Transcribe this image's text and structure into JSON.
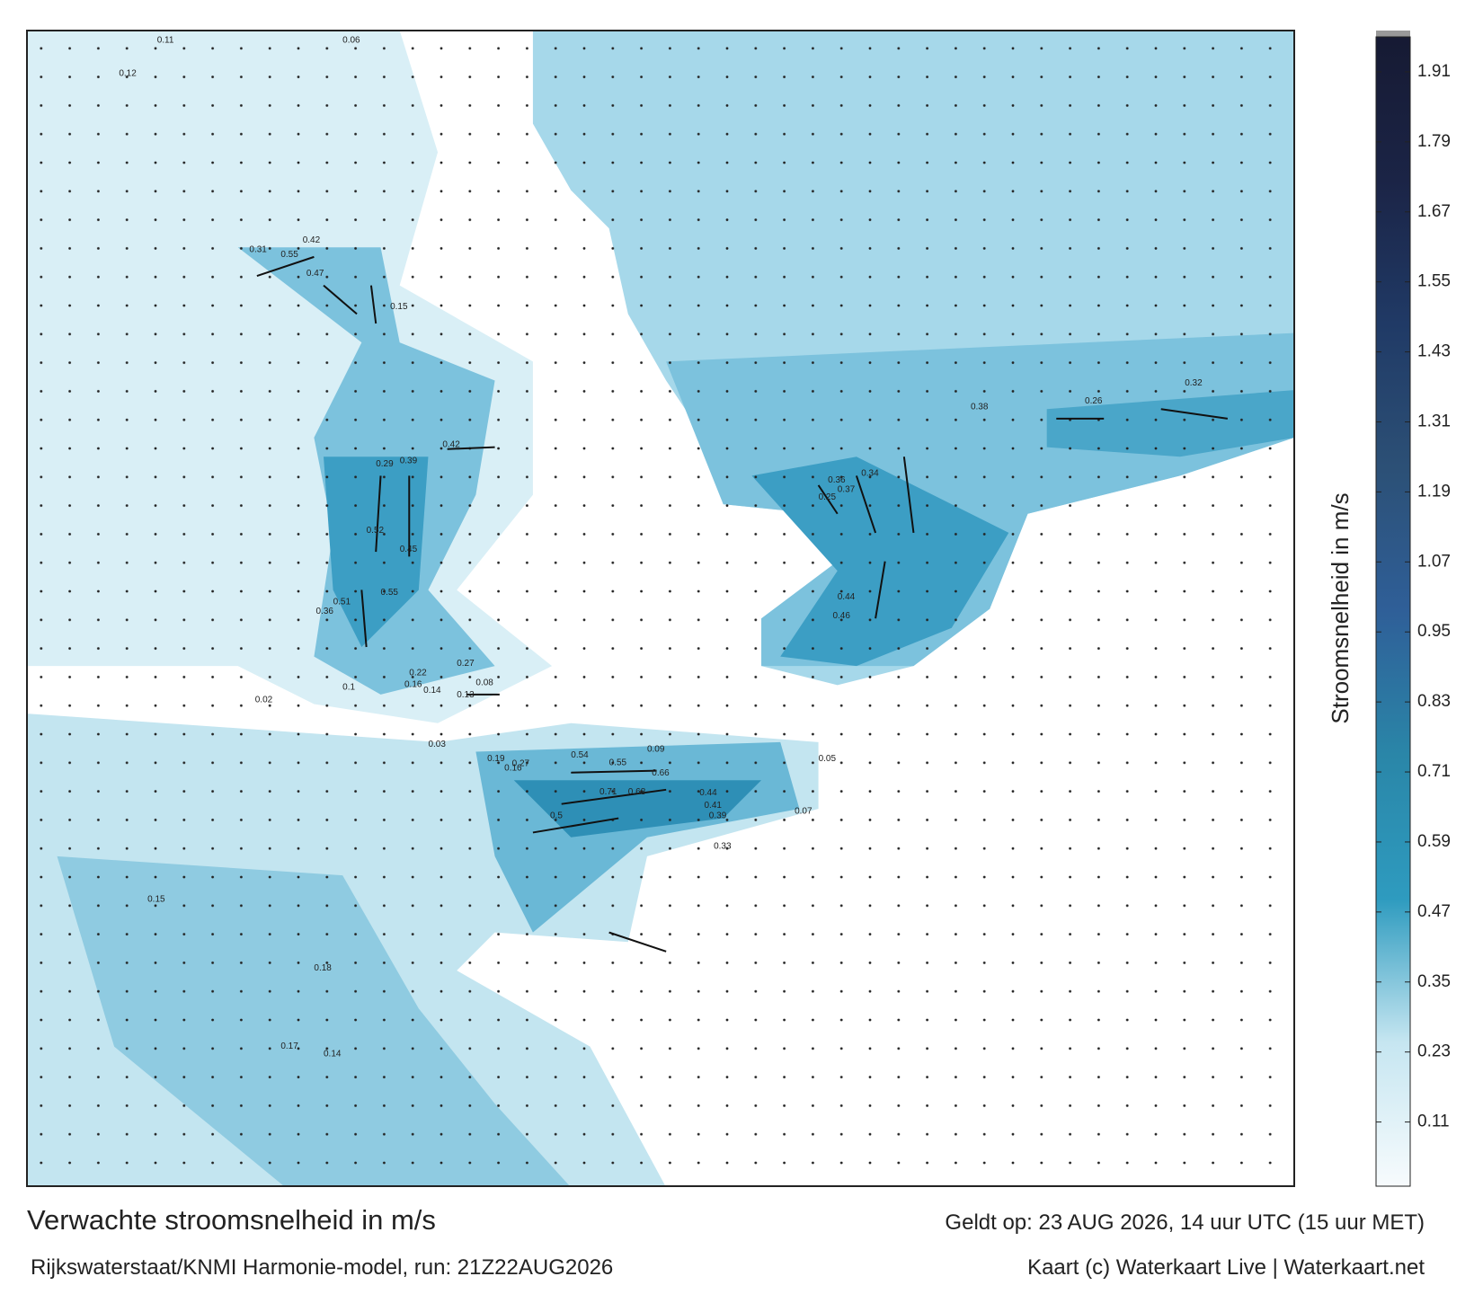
{
  "title": "Verwachte stroomsnelheid in m/s",
  "subtitle": "Rijkswaterstaat/KNMI Harmonie-model, run: 21Z22AUG2026",
  "valid": "Geldt op: 23 AUG 2026, 14 uur UTC (15 uur MET)",
  "credit": "Kaart (c) Waterkaart Live | Waterkaart.net",
  "colorbar": {
    "label": "Stroomsnelheid in m/s",
    "lim": [
      0,
      1.97
    ],
    "ticks": [
      0.11,
      0.23,
      0.35,
      0.47,
      0.59,
      0.71,
      0.83,
      0.95,
      1.07,
      1.19,
      1.31,
      1.43,
      1.55,
      1.67,
      1.79,
      1.91
    ],
    "colors": [
      "#f7fbfd",
      "#c6e6f1",
      "#2e9bbf",
      "#2a86a8",
      "#2f5f98",
      "#2c5076",
      "#203a66",
      "#1b2446",
      "#161a33"
    ]
  },
  "labels": [
    0.11,
    0.06,
    0.12,
    0.55,
    0.42,
    0.47,
    0.15,
    0.31,
    0.52,
    0.45,
    0.55,
    0.51,
    0.36,
    0.42,
    0.39,
    0.29,
    0.27,
    0.22,
    0.14,
    0.08,
    0.13,
    0.16,
    0.1,
    0.25,
    0.34,
    0.26,
    0.32,
    0.37,
    0.36,
    0.46,
    0.44,
    0.38,
    0.54,
    0.55,
    0.66,
    0.71,
    0.68,
    0.44,
    0.41,
    0.39,
    0.5,
    0.33,
    0.27,
    0.16,
    0.19,
    0.09,
    0.07,
    0.05,
    0.02,
    0.03,
    0.15,
    0.18,
    0.17,
    0.14
  ]
}
